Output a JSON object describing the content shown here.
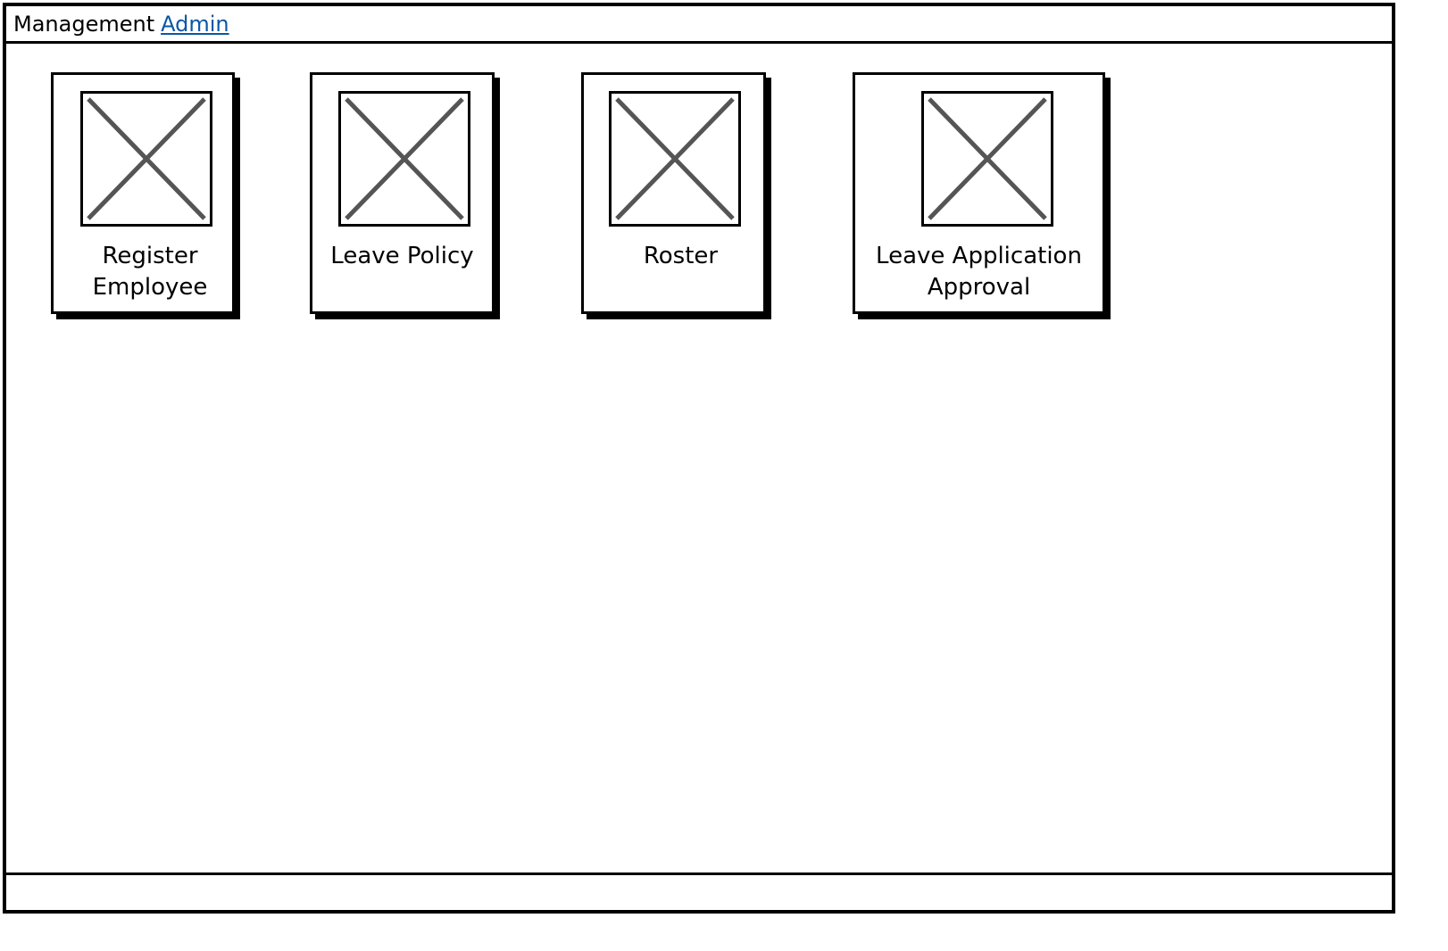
{
  "header": {
    "title": "Management",
    "link": "Admin"
  },
  "tiles": [
    {
      "label": "Register\nEmployee",
      "icon": "image-placeholder-icon"
    },
    {
      "label": "Leave Policy",
      "icon": "image-placeholder-icon"
    },
    {
      "label": "Roster",
      "icon": "image-placeholder-icon"
    },
    {
      "label": "Leave Application\nApproval",
      "icon": "image-placeholder-icon"
    }
  ]
}
